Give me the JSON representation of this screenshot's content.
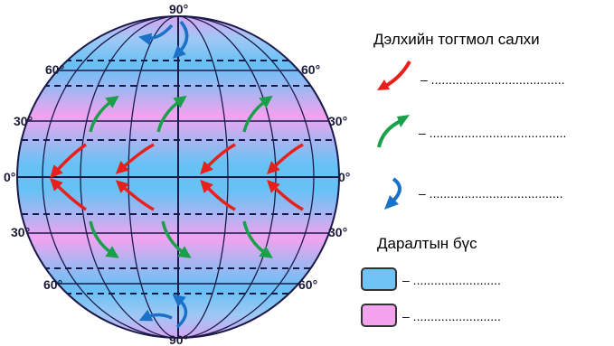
{
  "globe": {
    "labels": {
      "north_pole": "90°",
      "south_pole": "90°",
      "left_60n": "60°",
      "right_60n": "60°",
      "left_30n": "30°",
      "right_30n": "30°",
      "left_0": "0°",
      "right_0": "0°",
      "left_30s": "30°",
      "right_30s": "30°",
      "left_60s": "60°",
      "right_60s": "60°"
    },
    "colors": {
      "blue_band": "#6fc3f5",
      "pink_band": "#f3a2ee",
      "trade_wind_arrow": "#e8201c",
      "westerly_arrow": "#1aa04a",
      "polar_arrow": "#1a72c8"
    }
  },
  "legend": {
    "winds_title": "Дэлхийн тогтмол салхи",
    "wind_rows": [
      {
        "icon": "red-arrow-icon",
        "blank": "– ......................................"
      },
      {
        "icon": "green-arrow-icon",
        "blank": "– ......................................."
      },
      {
        "icon": "blue-arrow-icon",
        "blank": "– ......................................"
      }
    ],
    "pressure_title": "Даралтын бүс",
    "pressure_rows": [
      {
        "color": "#6fc3f5",
        "blank": "– ........................."
      },
      {
        "color": "#f3a2ee",
        "blank": "– ........................."
      }
    ]
  }
}
